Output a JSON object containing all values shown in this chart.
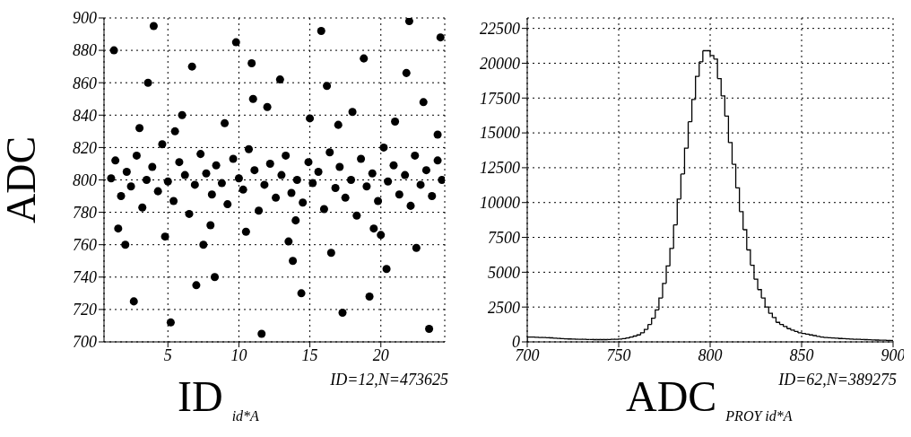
{
  "chart_data": [
    {
      "type": "scatter",
      "xlabel": "ID",
      "ylabel": "ADC",
      "annotations": [
        "id*A",
        "ID=12,N=473625"
      ],
      "color": "#000000",
      "marker": "circle",
      "grid": true,
      "xlim": [
        0.5,
        24.5
      ],
      "xticks": [
        5,
        10,
        15,
        20
      ],
      "ylim": [
        700,
        900
      ],
      "yticks": [
        700,
        720,
        740,
        760,
        780,
        800,
        820,
        840,
        860,
        880,
        900
      ],
      "x": [
        1.0,
        1.3,
        1.7,
        2.1,
        2.4,
        2.8,
        3.2,
        3.5,
        3.9,
        4.3,
        4.6,
        5.0,
        5.4,
        5.8,
        6.2,
        6.5,
        6.9,
        7.3,
        7.7,
        8.1,
        8.4,
        8.8,
        9.2,
        9.6,
        10.0,
        10.3,
        10.7,
        11.1,
        11.4,
        11.8,
        12.2,
        12.6,
        13.0,
        13.3,
        13.7,
        14.1,
        14.5,
        14.9,
        15.2,
        15.6,
        16.0,
        16.4,
        16.8,
        17.1,
        17.5,
        17.9,
        18.3,
        18.6,
        19.0,
        19.4,
        19.8,
        20.2,
        20.5,
        20.9,
        21.3,
        21.7,
        22.1,
        22.4,
        22.8,
        23.2,
        23.6,
        24.0,
        24.3,
        1.5,
        3.0,
        4.8,
        6.0,
        7.5,
        9.0,
        10.5,
        12.0,
        13.5,
        15.0,
        16.5,
        18.0,
        19.5,
        21.0,
        22.5,
        24.0,
        2.0,
        5.5,
        8.0,
        11.0,
        14.0,
        17.0,
        20.0,
        23.0,
        1.2,
        2.6,
        4.0,
        5.2,
        6.7,
        8.3,
        9.8,
        11.6,
        12.9,
        14.4,
        15.8,
        17.3,
        18.8,
        20.4,
        21.8,
        23.4,
        24.2,
        3.6,
        7.0,
        10.9,
        13.8,
        16.2,
        19.2,
        22.0
      ],
      "values": [
        801,
        812,
        790,
        805,
        796,
        815,
        783,
        800,
        808,
        793,
        822,
        799,
        787,
        811,
        803,
        779,
        797,
        816,
        804,
        791,
        809,
        798,
        785,
        813,
        801,
        794,
        819,
        806,
        781,
        797,
        810,
        789,
        803,
        815,
        792,
        800,
        786,
        811,
        798,
        805,
        782,
        817,
        795,
        808,
        789,
        800,
        778,
        813,
        796,
        804,
        787,
        820,
        799,
        809,
        791,
        803,
        784,
        815,
        797,
        806,
        790,
        812,
        800,
        770,
        832,
        765,
        840,
        760,
        835,
        768,
        845,
        762,
        838,
        755,
        842,
        770,
        836,
        758,
        828,
        760,
        830,
        772,
        850,
        775,
        834,
        766,
        848,
        880,
        725,
        895,
        712,
        870,
        740,
        885,
        705,
        862,
        730,
        892,
        718,
        875,
        745,
        866,
        708,
        888,
        860,
        735,
        872,
        750,
        858,
        728,
        898
      ]
    },
    {
      "type": "histogram",
      "xlabel": "ADC",
      "annotations": [
        "PROY id*A",
        "ID=62,N=389275"
      ],
      "color": "#000000",
      "grid": true,
      "xlim": [
        700,
        900
      ],
      "xticks": [
        700,
        750,
        800,
        850,
        900
      ],
      "ylim": [
        0,
        23250
      ],
      "yticks": [
        0,
        2500,
        5000,
        7500,
        10000,
        12500,
        15000,
        17500,
        20000,
        22500
      ],
      "bins": [
        700,
        702,
        704,
        706,
        708,
        710,
        712,
        714,
        716,
        718,
        720,
        722,
        724,
        726,
        728,
        730,
        732,
        734,
        736,
        738,
        740,
        742,
        744,
        746,
        748,
        750,
        752,
        754,
        756,
        758,
        760,
        762,
        764,
        766,
        768,
        770,
        772,
        774,
        776,
        778,
        780,
        782,
        784,
        786,
        788,
        790,
        792,
        794,
        796,
        798,
        800,
        802,
        804,
        806,
        808,
        810,
        812,
        814,
        816,
        818,
        820,
        822,
        824,
        826,
        828,
        830,
        832,
        834,
        836,
        838,
        840,
        842,
        844,
        846,
        848,
        850,
        852,
        854,
        856,
        858,
        860,
        862,
        864,
        866,
        868,
        870,
        872,
        874,
        876,
        878,
        880,
        882,
        884,
        886,
        888,
        890,
        892,
        894,
        896,
        898,
        900
      ],
      "values": [
        350,
        340,
        330,
        320,
        310,
        300,
        290,
        270,
        250,
        230,
        220,
        210,
        200,
        190,
        190,
        180,
        170,
        170,
        160,
        160,
        160,
        160,
        170,
        180,
        190,
        200,
        230,
        280,
        340,
        420,
        500,
        650,
        900,
        1250,
        1700,
        2300,
        3150,
        4200,
        5450,
        6700,
        8400,
        10250,
        12050,
        13900,
        15800,
        17400,
        19050,
        20100,
        20900,
        20900,
        20550,
        20300,
        18900,
        17650,
        16200,
        14300,
        12750,
        11050,
        9350,
        8050,
        6600,
        5500,
        4500,
        3750,
        3150,
        2500,
        2050,
        1750,
        1400,
        1250,
        1100,
        950,
        850,
        750,
        650,
        600,
        550,
        500,
        450,
        400,
        350,
        320,
        300,
        280,
        260,
        240,
        230,
        220,
        200,
        190,
        180,
        170,
        160,
        150,
        140,
        130,
        120,
        120,
        110,
        100
      ]
    }
  ]
}
